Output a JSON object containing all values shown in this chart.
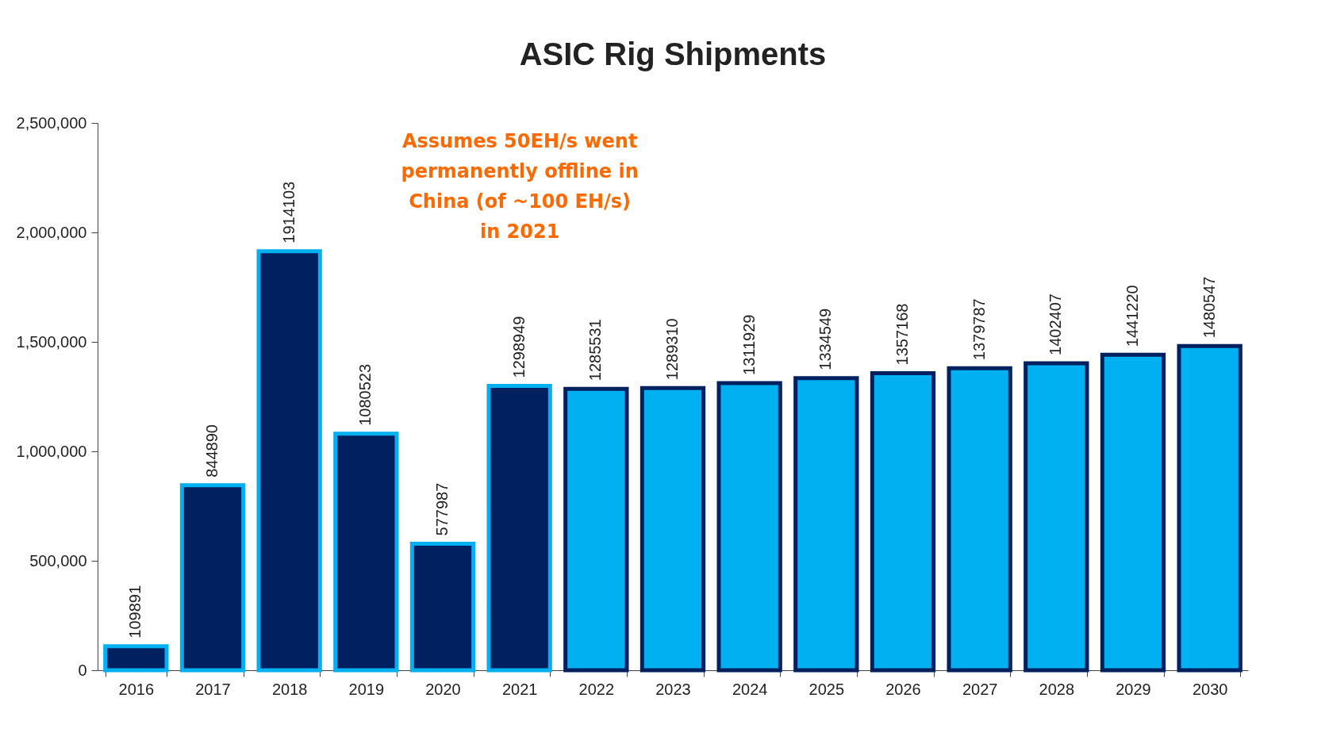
{
  "chart_data": {
    "type": "bar",
    "title": "ASIC Rig Shipments",
    "categories": [
      "2016",
      "2017",
      "2018",
      "2019",
      "2020",
      "2021",
      "2022",
      "2023",
      "2024",
      "2025",
      "2026",
      "2027",
      "2028",
      "2029",
      "2030"
    ],
    "values": [
      109891,
      844890,
      1914103,
      1080523,
      577987,
      1298949,
      1285531,
      1289310,
      1311929,
      1334549,
      1357168,
      1379787,
      1402407,
      1441220,
      1480547
    ],
    "colors": [
      "#002060",
      "#002060",
      "#002060",
      "#002060",
      "#002060",
      "#002060",
      "#00b0f0",
      "#00b0f0",
      "#00b0f0",
      "#00b0f0",
      "#00b0f0",
      "#00b0f0",
      "#00b0f0",
      "#00b0f0",
      "#00b0f0"
    ],
    "ylim": [
      0,
      2500000
    ],
    "yticks": [
      0,
      {
        "value": 500000,
        "label": "500,000"
      },
      {
        "value": 1000000,
        "label": "1,000,000"
      },
      {
        "value": 1500000,
        "label": "1,500,000"
      },
      {
        "value": 2000000,
        "label": "2,000,000"
      },
      {
        "value": 2500000,
        "label": "2,500,000"
      }
    ],
    "data_labels": true,
    "annotations": [
      "Assumes 50EH/s went\npermanently offline in\nChina (of ~100 EH/s)\nin 2021"
    ]
  }
}
